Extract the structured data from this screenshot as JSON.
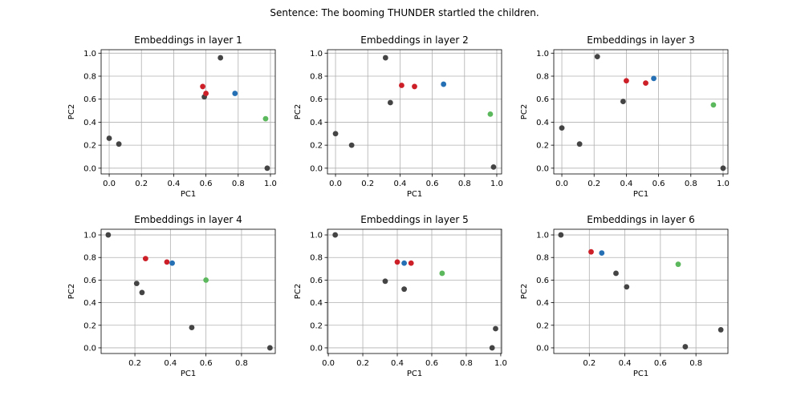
{
  "colors": {
    "gray": "#444444",
    "red": "#cc1f27",
    "blue": "#2570b5",
    "green": "#5cb85c"
  },
  "suptitle": "Sentence: The booming THUNDER startled the children.",
  "chart_data": [
    {
      "type": "scatter",
      "title": "Embeddings in layer 1",
      "xlabel": "PC1",
      "ylabel": "PC2",
      "xlim": [
        -0.05,
        1.03
      ],
      "ylim": [
        -0.05,
        1.03
      ],
      "xticks": [
        0.0,
        0.2,
        0.4,
        0.6,
        0.8,
        1.0
      ],
      "yticks": [
        0.0,
        0.2,
        0.4,
        0.6,
        0.8,
        1.0
      ],
      "xtick_labels": [
        "0.0",
        "0.2",
        "0.4",
        "0.6",
        "0.8",
        "1.0"
      ],
      "ytick_labels": [
        "0.0",
        "0.2",
        "0.4",
        "0.6",
        "0.8",
        "1.0"
      ],
      "grid": true,
      "points": [
        {
          "x": 0.0,
          "y": 0.26,
          "color": "gray"
        },
        {
          "x": 0.06,
          "y": 0.21,
          "color": "gray"
        },
        {
          "x": 0.59,
          "y": 0.62,
          "color": "gray"
        },
        {
          "x": 0.69,
          "y": 0.96,
          "color": "gray"
        },
        {
          "x": 0.98,
          "y": 0.0,
          "color": "gray"
        },
        {
          "x": 0.58,
          "y": 0.71,
          "color": "red"
        },
        {
          "x": 0.6,
          "y": 0.65,
          "color": "red"
        },
        {
          "x": 0.78,
          "y": 0.65,
          "color": "blue"
        },
        {
          "x": 0.97,
          "y": 0.43,
          "color": "green"
        }
      ]
    },
    {
      "type": "scatter",
      "title": "Embeddings in layer 2",
      "xlabel": "PC1",
      "ylabel": "PC2",
      "xlim": [
        -0.05,
        1.03
      ],
      "ylim": [
        -0.05,
        1.03
      ],
      "xticks": [
        0.0,
        0.2,
        0.4,
        0.6,
        0.8,
        1.0
      ],
      "yticks": [
        0.0,
        0.2,
        0.4,
        0.6,
        0.8,
        1.0
      ],
      "xtick_labels": [
        "0.0",
        "0.2",
        "0.4",
        "0.6",
        "0.8",
        "1.0"
      ],
      "ytick_labels": [
        "0.0",
        "0.2",
        "0.4",
        "0.6",
        "0.8",
        "1.0"
      ],
      "grid": true,
      "points": [
        {
          "x": 0.0,
          "y": 0.3,
          "color": "gray"
        },
        {
          "x": 0.1,
          "y": 0.2,
          "color": "gray"
        },
        {
          "x": 0.31,
          "y": 0.96,
          "color": "gray"
        },
        {
          "x": 0.34,
          "y": 0.57,
          "color": "gray"
        },
        {
          "x": 0.98,
          "y": 0.01,
          "color": "gray"
        },
        {
          "x": 0.41,
          "y": 0.72,
          "color": "red"
        },
        {
          "x": 0.49,
          "y": 0.71,
          "color": "red"
        },
        {
          "x": 0.67,
          "y": 0.73,
          "color": "blue"
        },
        {
          "x": 0.96,
          "y": 0.47,
          "color": "green"
        }
      ]
    },
    {
      "type": "scatter",
      "title": "Embeddings in layer 3",
      "xlabel": "PC1",
      "ylabel": "PC2",
      "xlim": [
        -0.05,
        1.03
      ],
      "ylim": [
        -0.05,
        1.03
      ],
      "xticks": [
        0.0,
        0.2,
        0.4,
        0.6,
        0.8,
        1.0
      ],
      "yticks": [
        0.0,
        0.2,
        0.4,
        0.6,
        0.8,
        1.0
      ],
      "xtick_labels": [
        "0.0",
        "0.2",
        "0.4",
        "0.6",
        "0.8",
        "1.0"
      ],
      "ytick_labels": [
        "0.0",
        "0.2",
        "0.4",
        "0.6",
        "0.8",
        "1.0"
      ],
      "grid": true,
      "points": [
        {
          "x": 0.0,
          "y": 0.35,
          "color": "gray"
        },
        {
          "x": 0.11,
          "y": 0.21,
          "color": "gray"
        },
        {
          "x": 0.22,
          "y": 0.97,
          "color": "gray"
        },
        {
          "x": 0.38,
          "y": 0.58,
          "color": "gray"
        },
        {
          "x": 1.0,
          "y": 0.0,
          "color": "gray"
        },
        {
          "x": 0.4,
          "y": 0.76,
          "color": "red"
        },
        {
          "x": 0.52,
          "y": 0.74,
          "color": "red"
        },
        {
          "x": 0.57,
          "y": 0.78,
          "color": "blue"
        },
        {
          "x": 0.94,
          "y": 0.55,
          "color": "green"
        }
      ]
    },
    {
      "type": "scatter",
      "title": "Embeddings in layer 4",
      "xlabel": "PC1",
      "ylabel": "PC2",
      "xlim": [
        0.01,
        0.99
      ],
      "ylim": [
        -0.05,
        1.05
      ],
      "xticks": [
        0.2,
        0.4,
        0.6,
        0.8
      ],
      "yticks": [
        0.0,
        0.2,
        0.4,
        0.6,
        0.8,
        1.0
      ],
      "xtick_labels": [
        "0.2",
        "0.4",
        "0.6",
        "0.8"
      ],
      "ytick_labels": [
        "0.0",
        "0.2",
        "0.4",
        "0.6",
        "0.8",
        "1.0"
      ],
      "grid": true,
      "points": [
        {
          "x": 0.05,
          "y": 1.0,
          "color": "gray"
        },
        {
          "x": 0.21,
          "y": 0.57,
          "color": "gray"
        },
        {
          "x": 0.24,
          "y": 0.49,
          "color": "gray"
        },
        {
          "x": 0.52,
          "y": 0.18,
          "color": "gray"
        },
        {
          "x": 0.96,
          "y": 0.0,
          "color": "gray"
        },
        {
          "x": 0.26,
          "y": 0.79,
          "color": "red"
        },
        {
          "x": 0.38,
          "y": 0.76,
          "color": "red"
        },
        {
          "x": 0.41,
          "y": 0.75,
          "color": "blue"
        },
        {
          "x": 0.6,
          "y": 0.6,
          "color": "green"
        }
      ]
    },
    {
      "type": "scatter",
      "title": "Embeddings in layer 5",
      "xlabel": "PC1",
      "ylabel": "PC2",
      "xlim": [
        -0.005,
        1.005
      ],
      "ylim": [
        -0.05,
        1.05
      ],
      "xticks": [
        0.0,
        0.2,
        0.4,
        0.6,
        0.8,
        1.0
      ],
      "yticks": [
        0.0,
        0.2,
        0.4,
        0.6,
        0.8,
        1.0
      ],
      "xtick_labels": [
        "0.0",
        "0.2",
        "0.4",
        "0.6",
        "0.8",
        "1.0"
      ],
      "ytick_labels": [
        "0.0",
        "0.2",
        "0.4",
        "0.6",
        "0.8",
        "1.0"
      ],
      "grid": true,
      "points": [
        {
          "x": 0.04,
          "y": 1.0,
          "color": "gray"
        },
        {
          "x": 0.33,
          "y": 0.59,
          "color": "gray"
        },
        {
          "x": 0.44,
          "y": 0.52,
          "color": "gray"
        },
        {
          "x": 0.95,
          "y": 0.0,
          "color": "gray"
        },
        {
          "x": 0.97,
          "y": 0.17,
          "color": "gray"
        },
        {
          "x": 0.4,
          "y": 0.76,
          "color": "red"
        },
        {
          "x": 0.48,
          "y": 0.75,
          "color": "red"
        },
        {
          "x": 0.44,
          "y": 0.75,
          "color": "blue"
        },
        {
          "x": 0.66,
          "y": 0.66,
          "color": "green"
        }
      ]
    },
    {
      "type": "scatter",
      "title": "Embeddings in layer 6",
      "xlabel": "PC1",
      "ylabel": "PC2",
      "xlim": [
        0.0,
        0.98
      ],
      "ylim": [
        -0.05,
        1.05
      ],
      "xticks": [
        0.2,
        0.4,
        0.6,
        0.8
      ],
      "yticks": [
        0.0,
        0.2,
        0.4,
        0.6,
        0.8,
        1.0
      ],
      "xtick_labels": [
        "0.2",
        "0.4",
        "0.6",
        "0.8"
      ],
      "ytick_labels": [
        "0.0",
        "0.2",
        "0.4",
        "0.6",
        "0.8",
        "1.0"
      ],
      "grid": true,
      "points": [
        {
          "x": 0.04,
          "y": 1.0,
          "color": "gray"
        },
        {
          "x": 0.35,
          "y": 0.66,
          "color": "gray"
        },
        {
          "x": 0.41,
          "y": 0.54,
          "color": "gray"
        },
        {
          "x": 0.74,
          "y": 0.01,
          "color": "gray"
        },
        {
          "x": 0.94,
          "y": 0.16,
          "color": "gray"
        },
        {
          "x": 0.21,
          "y": 0.85,
          "color": "red"
        },
        {
          "x": 0.27,
          "y": 0.84,
          "color": "blue"
        },
        {
          "x": 0.7,
          "y": 0.74,
          "color": "green"
        }
      ]
    }
  ]
}
